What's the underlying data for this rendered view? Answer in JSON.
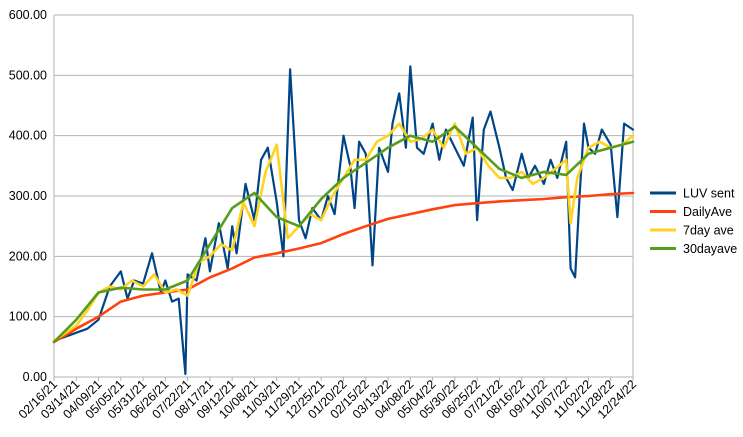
{
  "chart_data": {
    "type": "line",
    "title": "",
    "xlabel": "",
    "ylabel": "",
    "ylim": [
      0,
      600
    ],
    "y_ticks": [
      "0.00",
      "100.00",
      "200.00",
      "300.00",
      "400.00",
      "500.00",
      "600.00"
    ],
    "x_ticks": [
      "02/16/21",
      "03/14/21",
      "04/09/21",
      "05/05/21",
      "05/31/21",
      "06/26/21",
      "07/22/21",
      "08/17/21",
      "09/12/21",
      "10/08/21",
      "11/03/21",
      "11/29/21",
      "12/25/21",
      "01/20/22",
      "02/15/22",
      "03/13/22",
      "04/08/22",
      "05/04/22",
      "05/30/22",
      "06/25/22",
      "07/21/22",
      "08/16/22",
      "09/11/22",
      "10/07/22",
      "11/02/22",
      "11/28/22",
      "12/24/22"
    ],
    "grid": "horizontal",
    "legend_position": "right",
    "colors": {
      "LUV sent": "#004586",
      "DailyAve": "#ff420e",
      "7day ave": "#ffd320",
      "30dayave": "#579d1c"
    },
    "series": [
      {
        "name": "LUV sent",
        "x": [
          0,
          1.5,
          2,
          2.5,
          3,
          3.3,
          3.6,
          4,
          4.4,
          4.8,
          5,
          5.3,
          5.6,
          5.9,
          6,
          6.4,
          6.8,
          7,
          7.4,
          7.8,
          8,
          8.2,
          8.6,
          9,
          9.3,
          9.6,
          10,
          10.3,
          10.6,
          11,
          11.3,
          11.6,
          12,
          12.3,
          12.6,
          13,
          13.3,
          13.5,
          13.7,
          14,
          14.3,
          14.6,
          15,
          15.2,
          15.5,
          15.8,
          16,
          16.3,
          16.6,
          17,
          17.3,
          17.6,
          18,
          18.4,
          18.8,
          19,
          19.3,
          19.6,
          20,
          20.3,
          20.6,
          21,
          21.3,
          21.6,
          22,
          22.3,
          22.6,
          23,
          23.2,
          23.4,
          23.6,
          23.8,
          24,
          24.3,
          24.6,
          25,
          25.3,
          25.6,
          26
        ],
        "values": [
          60,
          80,
          95,
          150,
          175,
          130,
          160,
          155,
          205,
          140,
          160,
          125,
          130,
          5,
          170,
          160,
          230,
          175,
          255,
          180,
          250,
          205,
          320,
          260,
          360,
          380,
          290,
          200,
          510,
          260,
          230,
          280,
          260,
          300,
          270,
          400,
          350,
          280,
          390,
          370,
          185,
          380,
          340,
          420,
          470,
          380,
          515,
          380,
          370,
          420,
          360,
          410,
          380,
          350,
          430,
          260,
          410,
          440,
          380,
          330,
          310,
          370,
          330,
          350,
          320,
          360,
          330,
          390,
          180,
          165,
          300,
          420,
          380,
          370,
          410,
          385,
          265,
          420,
          410
        ]
      },
      {
        "name": "DailyAve",
        "x": [
          0,
          1,
          2,
          3,
          4,
          5,
          6,
          7,
          8,
          9,
          10,
          11,
          12,
          13,
          14,
          15,
          16,
          17,
          18,
          19,
          20,
          21,
          22,
          23,
          24,
          25,
          26
        ],
        "values": [
          58,
          80,
          100,
          125,
          135,
          140,
          145,
          165,
          180,
          198,
          205,
          213,
          222,
          237,
          250,
          262,
          270,
          278,
          285,
          288,
          291,
          293,
          295,
          298,
          300,
          303,
          305
        ]
      },
      {
        "name": "7day ave",
        "x": [
          0,
          1,
          1.5,
          2,
          2.5,
          3,
          3.5,
          4,
          4.5,
          5,
          5.5,
          6,
          6.5,
          7,
          7.5,
          8,
          8.5,
          9,
          9.5,
          10,
          10.5,
          11,
          11.5,
          12,
          12.5,
          13,
          13.5,
          14,
          14.5,
          15,
          15.5,
          16,
          16.5,
          17,
          17.5,
          18,
          18.5,
          19,
          19.5,
          20,
          20.5,
          21,
          21.5,
          22,
          22.5,
          23,
          23.2,
          23.5,
          24,
          24.5,
          25,
          25.5,
          26
        ],
        "values": [
          60,
          85,
          110,
          140,
          150,
          145,
          160,
          150,
          170,
          140,
          145,
          135,
          190,
          200,
          220,
          210,
          290,
          250,
          340,
          385,
          230,
          250,
          270,
          260,
          300,
          330,
          360,
          360,
          390,
          400,
          420,
          390,
          395,
          410,
          380,
          420,
          370,
          380,
          350,
          330,
          330,
          340,
          320,
          330,
          345,
          360,
          255,
          330,
          380,
          390,
          380,
          385,
          400
        ]
      },
      {
        "name": "30dayave",
        "x": [
          0,
          1,
          2,
          3,
          4,
          5,
          6,
          7,
          8,
          9,
          10,
          11,
          12,
          13,
          14,
          15,
          16,
          17,
          18,
          19,
          20,
          21,
          22,
          23,
          24,
          25,
          26
        ],
        "values": [
          58,
          95,
          140,
          148,
          145,
          145,
          160,
          220,
          280,
          305,
          265,
          250,
          295,
          330,
          355,
          380,
          400,
          390,
          415,
          380,
          345,
          330,
          340,
          335,
          370,
          380,
          390
        ]
      }
    ]
  }
}
